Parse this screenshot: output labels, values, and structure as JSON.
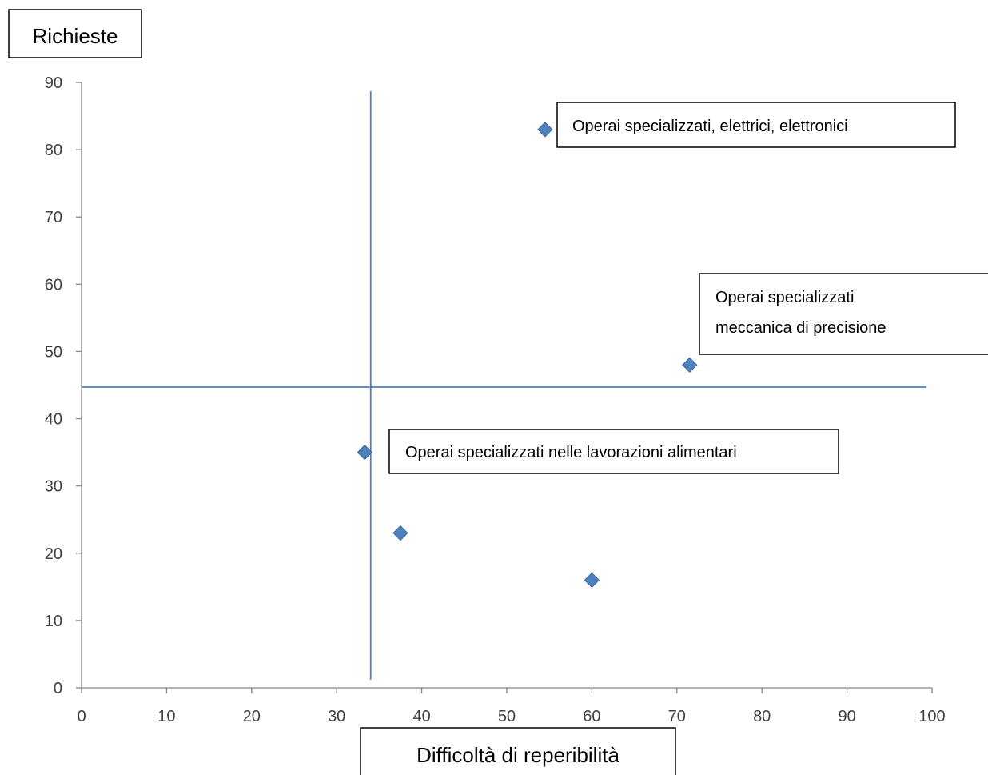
{
  "chart_data": {
    "type": "scatter",
    "ylabel": "Richieste",
    "xlabel": "Difficoltà di reperibilità",
    "xlim": [
      0,
      100
    ],
    "ylim": [
      0,
      90
    ],
    "x_ticks": [
      0,
      10,
      20,
      30,
      40,
      50,
      60,
      70,
      80,
      90,
      100
    ],
    "y_ticks": [
      0,
      10,
      20,
      30,
      40,
      50,
      60,
      70,
      80,
      90
    ],
    "grid": false,
    "legend": "none",
    "series": [
      {
        "color": "#4f81bd",
        "marker": "diamond",
        "points": [
          {
            "x": 54.5,
            "y": 83
          },
          {
            "x": 71.5,
            "y": 48
          },
          {
            "x": 33.3,
            "y": 35
          },
          {
            "x": 37.5,
            "y": 23
          },
          {
            "x": 60,
            "y": 16
          }
        ]
      }
    ],
    "reference_lines": {
      "vertical_x": 34,
      "horizontal_y": 44.7,
      "color": "#4f81bd"
    },
    "annotations": [
      {
        "text_lines": [
          "Operai specializzati, elettrici, elettronici"
        ]
      },
      {
        "text_lines": [
          "Operai specializzati",
          "meccanica di precisione"
        ]
      },
      {
        "text_lines": [
          "Operai specializzati nelle lavorazioni alimentari"
        ]
      }
    ]
  }
}
